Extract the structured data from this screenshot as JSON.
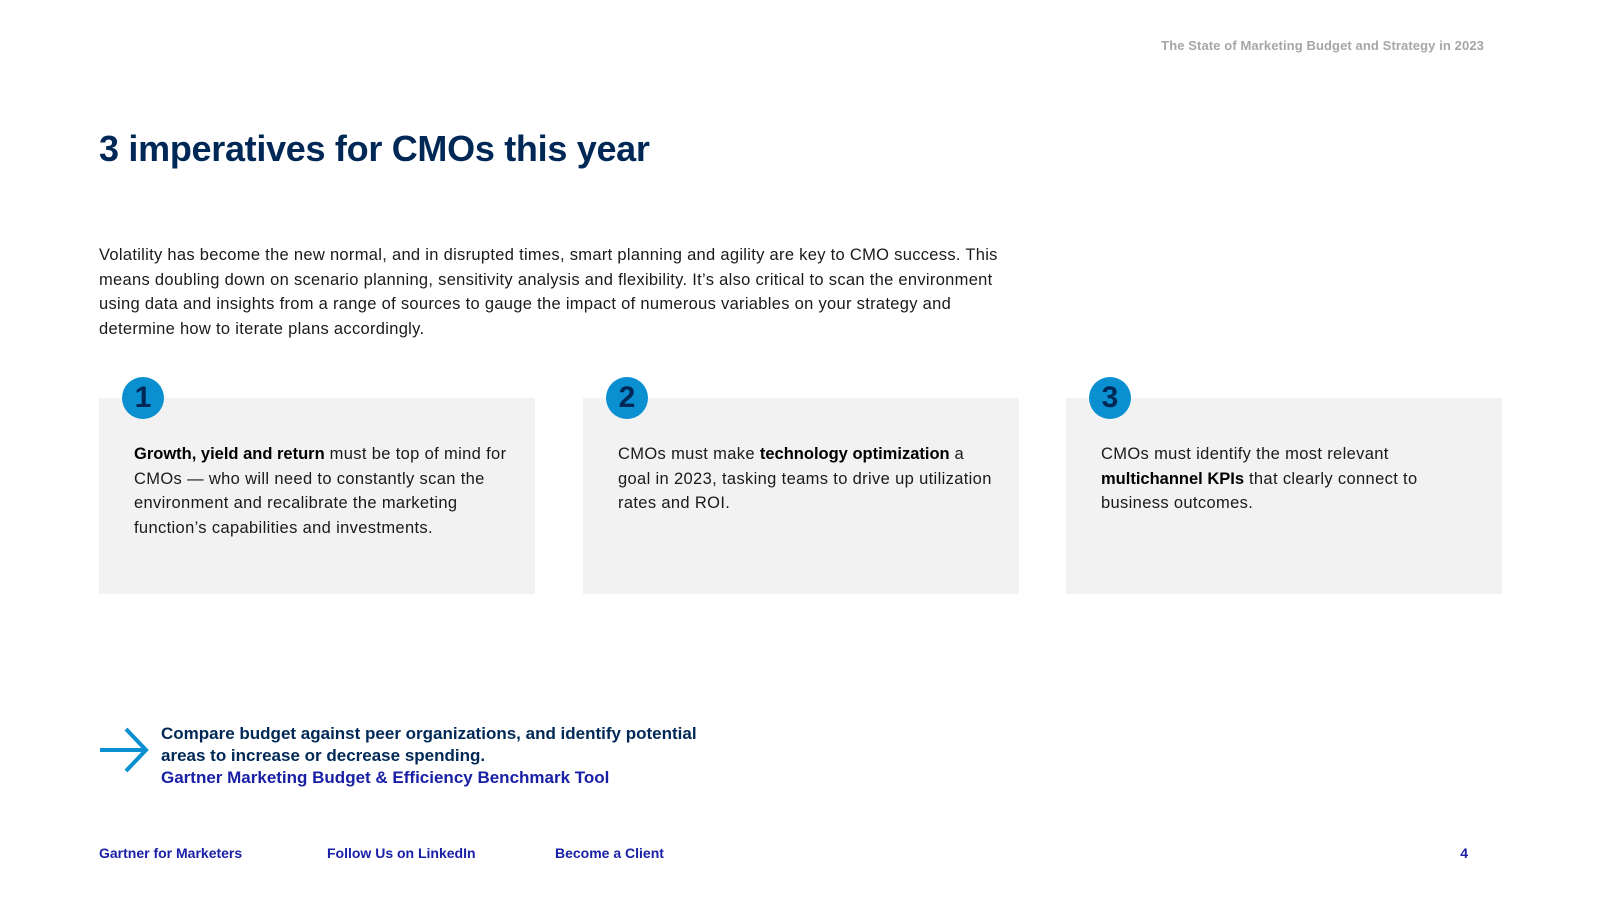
{
  "header": {
    "running_title": "The State of Marketing Budget and Strategy in 2023"
  },
  "title": "3 imperatives for CMOs this year",
  "intro": "Volatility has become the new normal, and in disrupted times, smart planning and agility are key to CMO success. This means doubling down on scenario planning, sensitivity analysis and flexibility. It’s also critical to scan the environment using data and insights from a range of sources to gauge the impact of numerous variables on your strategy and determine how to iterate plans accordingly.",
  "cards": [
    {
      "number": "1",
      "lead": "",
      "bold": "Growth, yield and return",
      "rest": " must be top of mind for CMOs — who will need to constantly scan the environment and recalibrate the marketing function’s capabilities and investments."
    },
    {
      "number": "2",
      "lead": "CMOs must make ",
      "bold": "technology optimization",
      "rest": " a goal in 2023, tasking teams to drive up utilization rates and ROI."
    },
    {
      "number": "3",
      "lead": "CMOs must identify the most relevant ",
      "bold": "multichannel KPIs",
      "rest": " that clearly connect to business outcomes."
    }
  ],
  "callout": {
    "text": "Compare budget against peer organizations, and identify potential areas to increase or decrease spending.",
    "link": "Gartner Marketing Budget & Efficiency Benchmark Tool"
  },
  "footer": {
    "links": [
      "Gartner for Marketers",
      "Follow Us on LinkedIn",
      "Become a Client"
    ],
    "page_number": "4"
  },
  "colors": {
    "title_navy": "#002856",
    "accent_blue": "#0a8fd1",
    "link_blue": "#1a20a6",
    "card_bg": "#f2f2f2"
  },
  "icons": {
    "callout": "arrow-right-icon"
  }
}
